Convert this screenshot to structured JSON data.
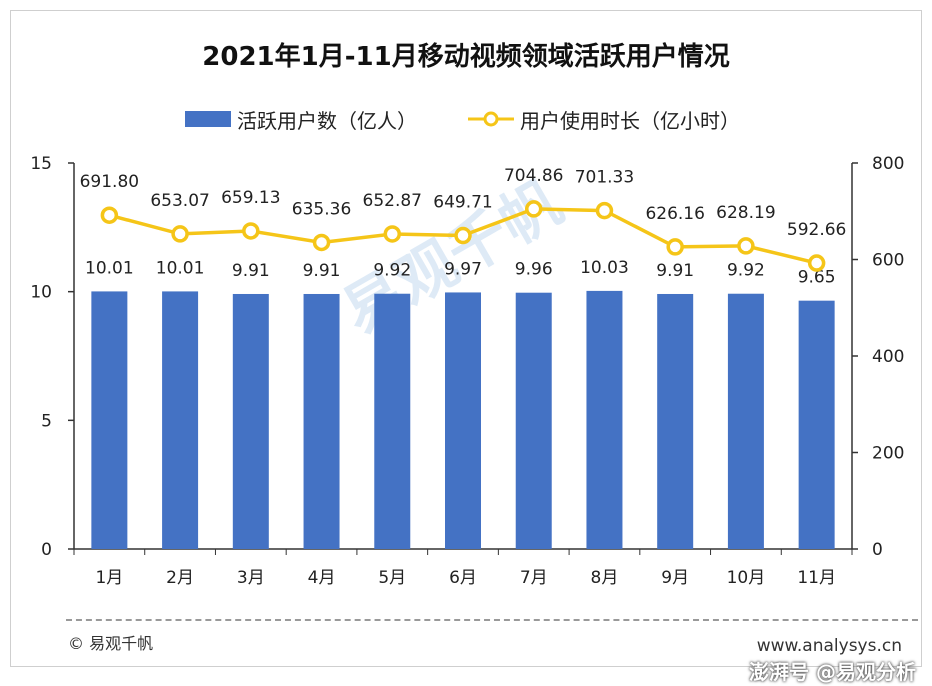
{
  "chart_data": {
    "type": "bar+line",
    "title": "2021年1月-11月移动视频领域活跃用户情况",
    "categories": [
      "1月",
      "2月",
      "3月",
      "4月",
      "5月",
      "6月",
      "7月",
      "8月",
      "9月",
      "10月",
      "11月"
    ],
    "series": [
      {
        "name": "活跃用户数（亿人）",
        "type": "bar",
        "axis": "left",
        "values": [
          10.01,
          10.01,
          9.91,
          9.91,
          9.92,
          9.97,
          9.96,
          10.03,
          9.91,
          9.92,
          9.65
        ],
        "labels": [
          "10.01",
          "10.01",
          "9.91",
          "9.91",
          "9.92",
          "9.97",
          "9.96",
          "10.03",
          "9.91",
          "9.92",
          "9.65"
        ],
        "color": "#4472c4"
      },
      {
        "name": "用户使用时长（亿小时）",
        "type": "line",
        "axis": "right",
        "values": [
          691.8,
          653.07,
          659.13,
          635.36,
          652.87,
          649.71,
          704.86,
          701.33,
          626.16,
          628.19,
          592.66
        ],
        "labels": [
          "691.80",
          "653.07",
          "659.13",
          "635.36",
          "652.87",
          "649.71",
          "704.86",
          "701.33",
          "626.16",
          "628.19",
          "592.66"
        ],
        "color": "#f5c518"
      }
    ],
    "y_left": {
      "range": [
        0,
        15
      ],
      "ticks": [
        "0",
        "5",
        "10",
        "15"
      ]
    },
    "y_right": {
      "range": [
        0,
        800
      ],
      "ticks": [
        "0",
        "200",
        "400",
        "600",
        "800"
      ]
    },
    "grid": false,
    "legend_position": "top"
  },
  "footer": {
    "copyright": "© 易观千帆",
    "website": "www.analysys.cn",
    "watermark_bottom": "澎湃号 @易观分析"
  },
  "watermark": "易观千帆"
}
